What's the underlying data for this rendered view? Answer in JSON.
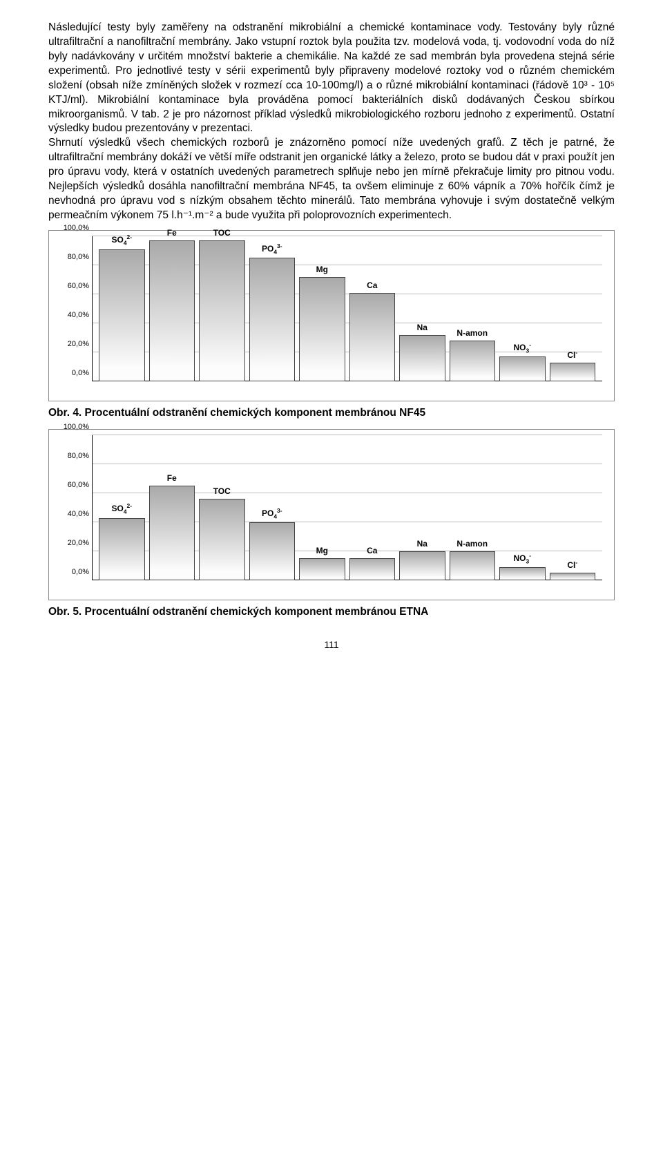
{
  "paragraphs": [
    "Následující testy byly zaměřeny na odstranění mikrobiální a chemické kontaminace vody. Testovány byly různé ultrafiltrační a nanofiltrační membrány. Jako vstupní roztok byla použita tzv. modelová voda, tj. vodovodní voda do níž byly nadávkovány v určitém množství bakterie a chemikálie. Na každé ze sad membrán byla provedena stejná série experimentů. Pro jednotlivé testy v sérii experimentů byly připraveny modelové roztoky vod o různém chemickém složení (obsah níže zmíněných složek v rozmezí cca 10-100mg/l) a o různé mikrobiální kontaminaci (řádově 10³ - 10⁵ KTJ/ml). Mikrobiální kontaminace byla prováděna pomocí bakteriálních disků dodávaných Českou sbírkou mikroorganismů. V tab. 2 je pro názornost příklad výsledků mikrobiologického rozboru jednoho z experimentů. Ostatní výsledky budou prezentovány v prezentaci.",
    "Shrnutí výsledků všech chemických rozborů je znázorněno pomocí níže uvedených grafů. Z těch je patrné, že ultrafiltrační membrány dokáží ve větší míře odstranit jen organické látky a železo, proto se budou dát v praxi použít jen pro úpravu vody, která v ostatních uvedených parametrech splňuje nebo jen mírně překračuje limity pro pitnou vodu. Nejlepších výsledků dosáhla nanofiltrační membrána NF45, ta ovšem eliminuje z 60% vápník a 70% hořčík čímž je nevhodná pro úpravu vod s nízkým obsahem těchto minerálů. Tato membrána vyhovuje i svým dostatečně velkým permeačním výkonem 75 l.h⁻¹.m⁻² a bude využita při poloprovozních experimentech."
  ],
  "chart1": {
    "type": "bar",
    "categories": [
      "SO4_2-",
      "Fe",
      "TOC",
      "PO4_3-",
      "Mg",
      "Ca",
      "Na",
      "N-amon",
      "NO3-",
      "Cl-"
    ],
    "labels_html": [
      "SO<sub>4</sub><sup>2-</sup>",
      "Fe",
      "TOC",
      "PO<sub>4</sub><sup>3-</sup>",
      "Mg",
      "Ca",
      "Na",
      "N-amon",
      "NO<sub>3</sub><sup>-</sup>",
      "Cl<sup>-</sup>"
    ],
    "values": [
      91,
      97,
      97,
      85,
      72,
      61,
      32,
      28,
      17,
      13
    ],
    "ylim": [
      0,
      100
    ],
    "ytick_step": 20,
    "ytick_labels": [
      "0,0%",
      "20,0%",
      "40,0%",
      "60,0%",
      "80,0%",
      "100,0%"
    ],
    "bar_gradient_top": "#a9a9a9",
    "bar_gradient_bottom": "#fcfcfc",
    "bar_border": "#444444",
    "grid_color": "#bbbbbb",
    "background": "#ffffff",
    "label_fontsize": 12
  },
  "caption1": "Obr. 4. Procentuální odstranění chemických komponent membránou NF45",
  "chart2": {
    "type": "bar",
    "categories": [
      "SO4_2-",
      "Fe",
      "TOC",
      "PO4_3-",
      "Mg",
      "Ca",
      "Na",
      "N-amon",
      "NO3-",
      "Cl-"
    ],
    "labels_html": [
      "SO<sub>4</sub><sup>2-</sup>",
      "Fe",
      "TOC",
      "PO<sub>4</sub><sup>3-</sup>",
      "Mg",
      "Ca",
      "Na",
      "N-amon",
      "NO<sub>3</sub><sup>-</sup>",
      "Cl<sup>-</sup>"
    ],
    "values": [
      43,
      65,
      56,
      40,
      15,
      15,
      20,
      20,
      9,
      5
    ],
    "ylim": [
      0,
      100
    ],
    "ytick_step": 20,
    "ytick_labels": [
      "0,0%",
      "20,0%",
      "40,0%",
      "60,0%",
      "80,0%",
      "100,0%"
    ],
    "bar_gradient_top": "#a9a9a9",
    "bar_gradient_bottom": "#fcfcfc",
    "bar_border": "#444444",
    "grid_color": "#bbbbbb",
    "background": "#ffffff",
    "label_fontsize": 12
  },
  "caption2": "Obr. 5. Procentuální odstranění chemických komponent membránou ETNA",
  "page_number": "111"
}
